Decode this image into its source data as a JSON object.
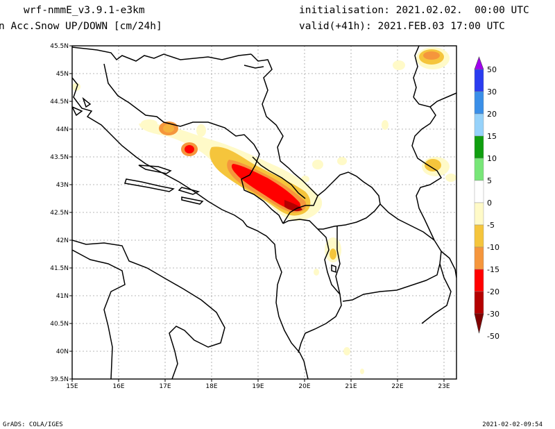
{
  "header": {
    "model": "wrf-nmmE_v3.9.1-e3km",
    "variable": "n Acc.Snow UP/DOWN [cm/24h]",
    "init": "initialisation: 2021.02.02.  00:00 UTC",
    "valid": "valid(+41h): 2021.FEB.03 17:00 UTC"
  },
  "footer": {
    "left": "GrADS: COLA/IGES",
    "right": "2021-02-02-09:54"
  },
  "map": {
    "lat_labels": [
      "45.5N",
      "45N",
      "44.5N",
      "44N",
      "43.5N",
      "43N",
      "42.5N",
      "42N",
      "41.5N",
      "41N",
      "40.5N",
      "40N",
      "39.5N"
    ],
    "lon_labels": [
      "15E",
      "16E",
      "17E",
      "18E",
      "19E",
      "20E",
      "21E",
      "22E",
      "23E"
    ],
    "grid": true
  },
  "colorbar": {
    "labels": [
      "50",
      "30",
      "20",
      "15",
      "10",
      "5",
      "0",
      "-5",
      "-10",
      "-15",
      "-20",
      "-30",
      "-50"
    ],
    "colors": [
      "#a000f0",
      "#2a3cf0",
      "#3a8fe8",
      "#96d2fa",
      "#0f9e0f",
      "#78e678",
      "#ffffff",
      "#fffac8",
      "#f5c53c",
      "#f5963c",
      "#ff0000",
      "#b40000",
      "#800000"
    ]
  }
}
